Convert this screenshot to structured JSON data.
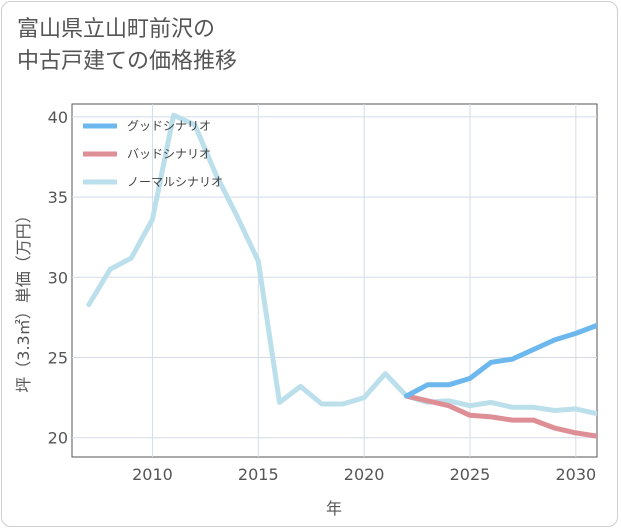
{
  "title_line1": "富山県立山町前沢の",
  "title_line2": "中古戸建ての価格推移",
  "chart_data": {
    "type": "line",
    "xlabel": "年",
    "ylabel": "坪（3.3㎡）単価（万円）",
    "xlim": [
      2006.2,
      2031
    ],
    "ylim": [
      18.8,
      40.8
    ],
    "xticks": [
      2010,
      2015,
      2020,
      2025,
      2030
    ],
    "yticks": [
      20,
      25,
      30,
      35,
      40
    ],
    "grid": true,
    "legend_position": "top-left",
    "series": [
      {
        "name": "グッドシナリオ",
        "color": "#6cb8ee",
        "x": [
          2022,
          2023,
          2024,
          2025,
          2026,
          2027,
          2028,
          2029,
          2030,
          2031
        ],
        "y": [
          22.6,
          23.3,
          23.3,
          23.7,
          24.7,
          24.9,
          25.5,
          26.1,
          26.5,
          27.0
        ]
      },
      {
        "name": "バッドシナリオ",
        "color": "#de8e95",
        "x": [
          2022,
          2023,
          2024,
          2025,
          2026,
          2027,
          2028,
          2029,
          2030,
          2031
        ],
        "y": [
          22.6,
          22.3,
          22.0,
          21.4,
          21.3,
          21.1,
          21.1,
          20.6,
          20.3,
          20.1
        ]
      },
      {
        "name": "ノーマルシナリオ",
        "color": "#bcdfec",
        "x": [
          2007,
          2008,
          2009,
          2010,
          2011,
          2012,
          2013,
          2014,
          2015,
          2016,
          2017,
          2018,
          2019,
          2020,
          2021,
          2022,
          2023,
          2024,
          2025,
          2026,
          2027,
          2028,
          2029,
          2030,
          2031
        ],
        "y": [
          28.3,
          30.5,
          31.2,
          33.6,
          40.1,
          39.5,
          36.4,
          33.8,
          31.0,
          22.2,
          23.2,
          22.1,
          22.1,
          22.5,
          24.0,
          22.6,
          22.2,
          22.3,
          22.0,
          22.2,
          21.9,
          21.9,
          21.7,
          21.8,
          21.5
        ]
      }
    ]
  }
}
